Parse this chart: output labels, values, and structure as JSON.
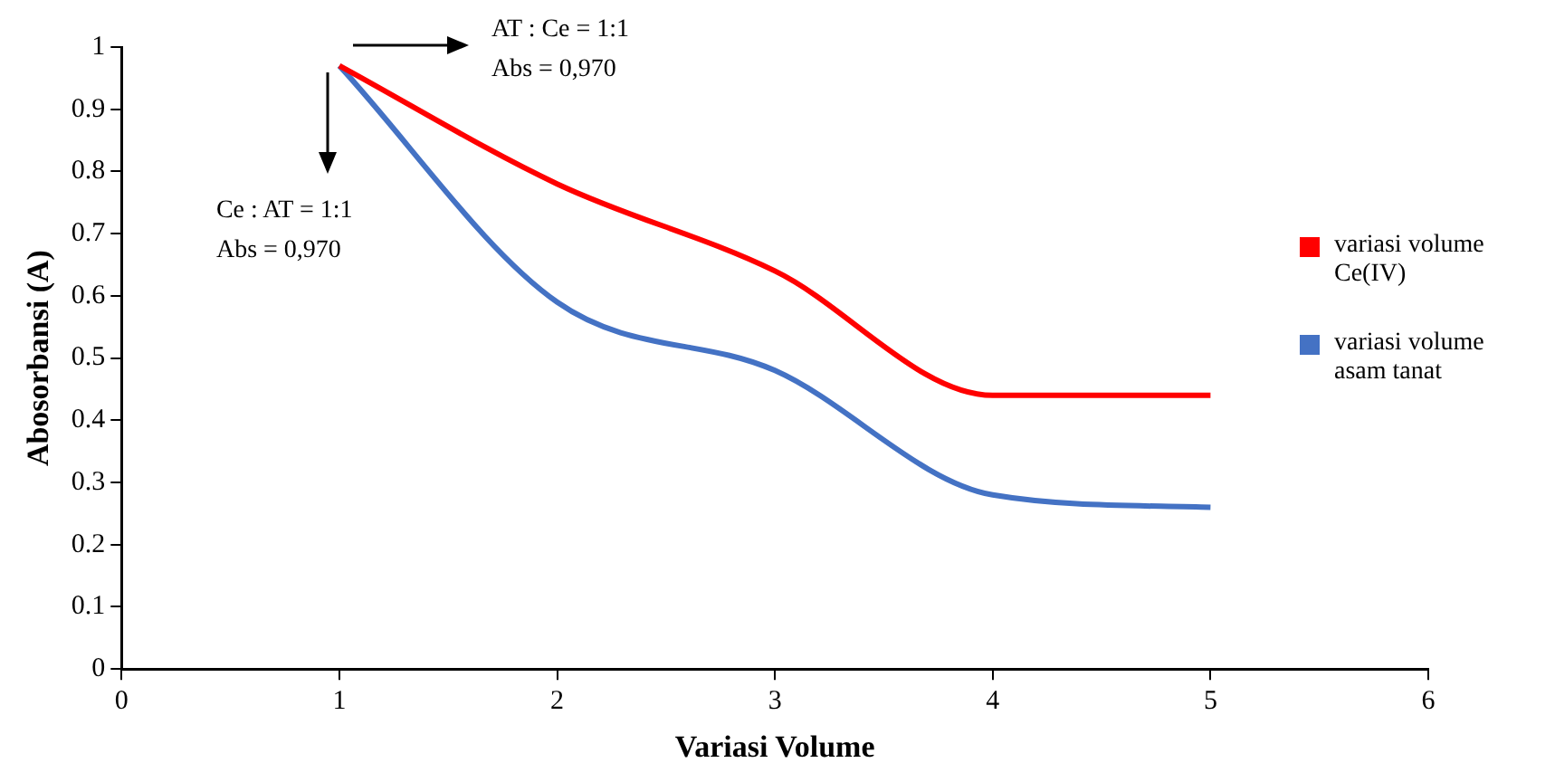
{
  "chart_data": {
    "type": "line",
    "xlabel": "Variasi Volume",
    "ylabel": "Abosorbansi (A)",
    "x": [
      1,
      2,
      3,
      4,
      5
    ],
    "series": [
      {
        "name": "variasi volume Ce(IV)",
        "color": "#ff0000",
        "values": [
          0.97,
          0.78,
          0.64,
          0.44,
          0.44
        ]
      },
      {
        "name": "variasi volume asam tanat",
        "color": "#4472c4",
        "values": [
          0.97,
          0.59,
          0.48,
          0.28,
          0.26
        ]
      }
    ],
    "xlim": [
      0,
      6
    ],
    "xticks": [
      0,
      1,
      2,
      3,
      4,
      5,
      6
    ],
    "ylim": [
      0,
      1
    ],
    "yticks": [
      0,
      0.1,
      0.2,
      0.3,
      0.4,
      0.5,
      0.6,
      0.7,
      0.8,
      0.9,
      1
    ],
    "grid": false,
    "legend": "right",
    "marker": "none",
    "line_style": "solid",
    "annotations": [
      "AT : Ce = 1:1\nAbs = 0,970",
      "Ce : AT = 1:1\nAbs = 0,970"
    ]
  }
}
